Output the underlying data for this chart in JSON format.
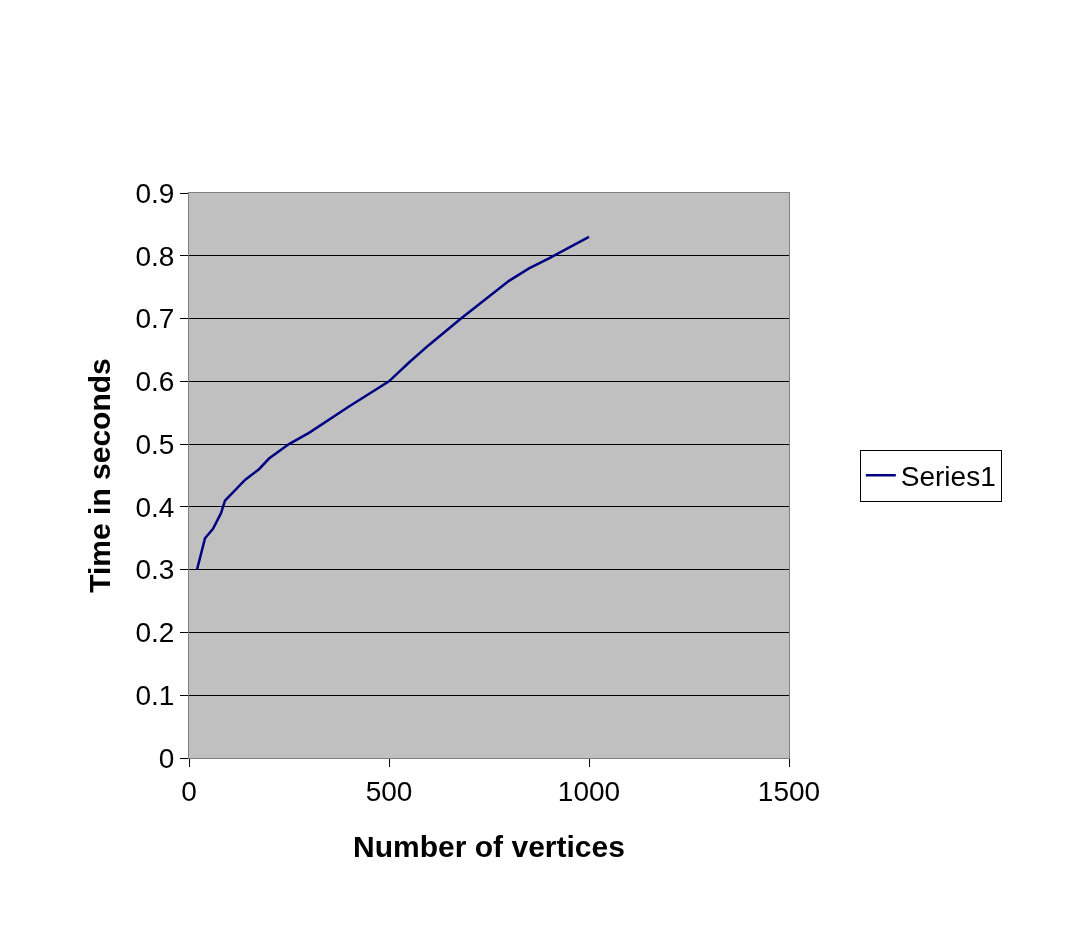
{
  "chart_data": {
    "type": "line",
    "xlabel": "Number of vertices",
    "ylabel": "Time in seconds",
    "series": [
      {
        "name": "Series1",
        "color": "#000080",
        "x": [
          20,
          40,
          60,
          80,
          90,
          140,
          175,
          200,
          250,
          300,
          400,
          500,
          550,
          600,
          680,
          800,
          850,
          900,
          1000
        ],
        "values": [
          0.3,
          0.35,
          0.365,
          0.39,
          0.41,
          0.443,
          0.46,
          0.477,
          0.5,
          0.518,
          0.56,
          0.6,
          0.63,
          0.658,
          0.7,
          0.76,
          0.78,
          0.796,
          0.83
        ]
      }
    ],
    "xlim": [
      0,
      1500
    ],
    "xticks": [
      0,
      500,
      1000,
      1500
    ],
    "ylim": [
      0,
      0.9
    ],
    "yticks": [
      0,
      0.1,
      0.2,
      0.3,
      0.4,
      0.5,
      0.6,
      0.7,
      0.8,
      0.9
    ],
    "grid": "y",
    "legend": "right",
    "marker": "none",
    "line_style": "solid"
  }
}
